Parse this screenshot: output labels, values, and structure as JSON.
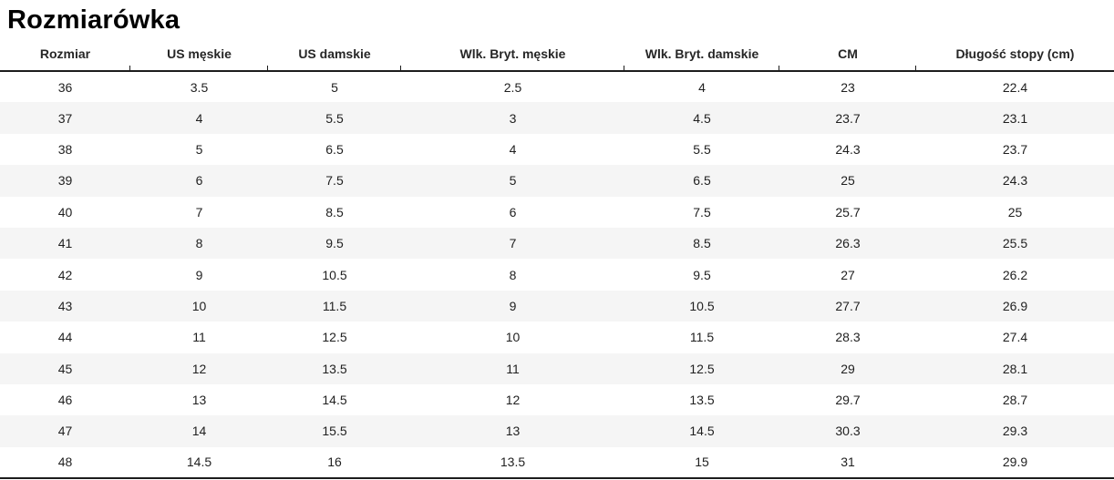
{
  "title": "Rozmiarówka",
  "table": {
    "columns": [
      "Rozmiar",
      "US męskie",
      "US damskie",
      "Wlk. Bryt. męskie",
      "Wlk. Bryt. damskie",
      "CM",
      "Długość stopy (cm)"
    ],
    "rows": [
      [
        "36",
        "3.5",
        "5",
        "2.5",
        "4",
        "23",
        "22.4"
      ],
      [
        "37",
        "4",
        "5.5",
        "3",
        "4.5",
        "23.7",
        "23.1"
      ],
      [
        "38",
        "5",
        "6.5",
        "4",
        "5.5",
        "24.3",
        "23.7"
      ],
      [
        "39",
        "6",
        "7.5",
        "5",
        "6.5",
        "25",
        "24.3"
      ],
      [
        "40",
        "7",
        "8.5",
        "6",
        "7.5",
        "25.7",
        "25"
      ],
      [
        "41",
        "8",
        "9.5",
        "7",
        "8.5",
        "26.3",
        "25.5"
      ],
      [
        "42",
        "9",
        "10.5",
        "8",
        "9.5",
        "27",
        "26.2"
      ],
      [
        "43",
        "10",
        "11.5",
        "9",
        "10.5",
        "27.7",
        "26.9"
      ],
      [
        "44",
        "11",
        "12.5",
        "10",
        "11.5",
        "28.3",
        "27.4"
      ],
      [
        "45",
        "12",
        "13.5",
        "11",
        "12.5",
        "29",
        "28.1"
      ],
      [
        "46",
        "13",
        "14.5",
        "12",
        "13.5",
        "29.7",
        "28.7"
      ],
      [
        "47",
        "14",
        "15.5",
        "13",
        "14.5",
        "30.3",
        "29.3"
      ],
      [
        "48",
        "14.5",
        "16",
        "13.5",
        "15",
        "31",
        "29.9"
      ]
    ]
  },
  "colors": {
    "stripe": "#f5f5f5",
    "rule": "#1c1c1c",
    "text": "#1f1f1f",
    "background": "#ffffff"
  }
}
